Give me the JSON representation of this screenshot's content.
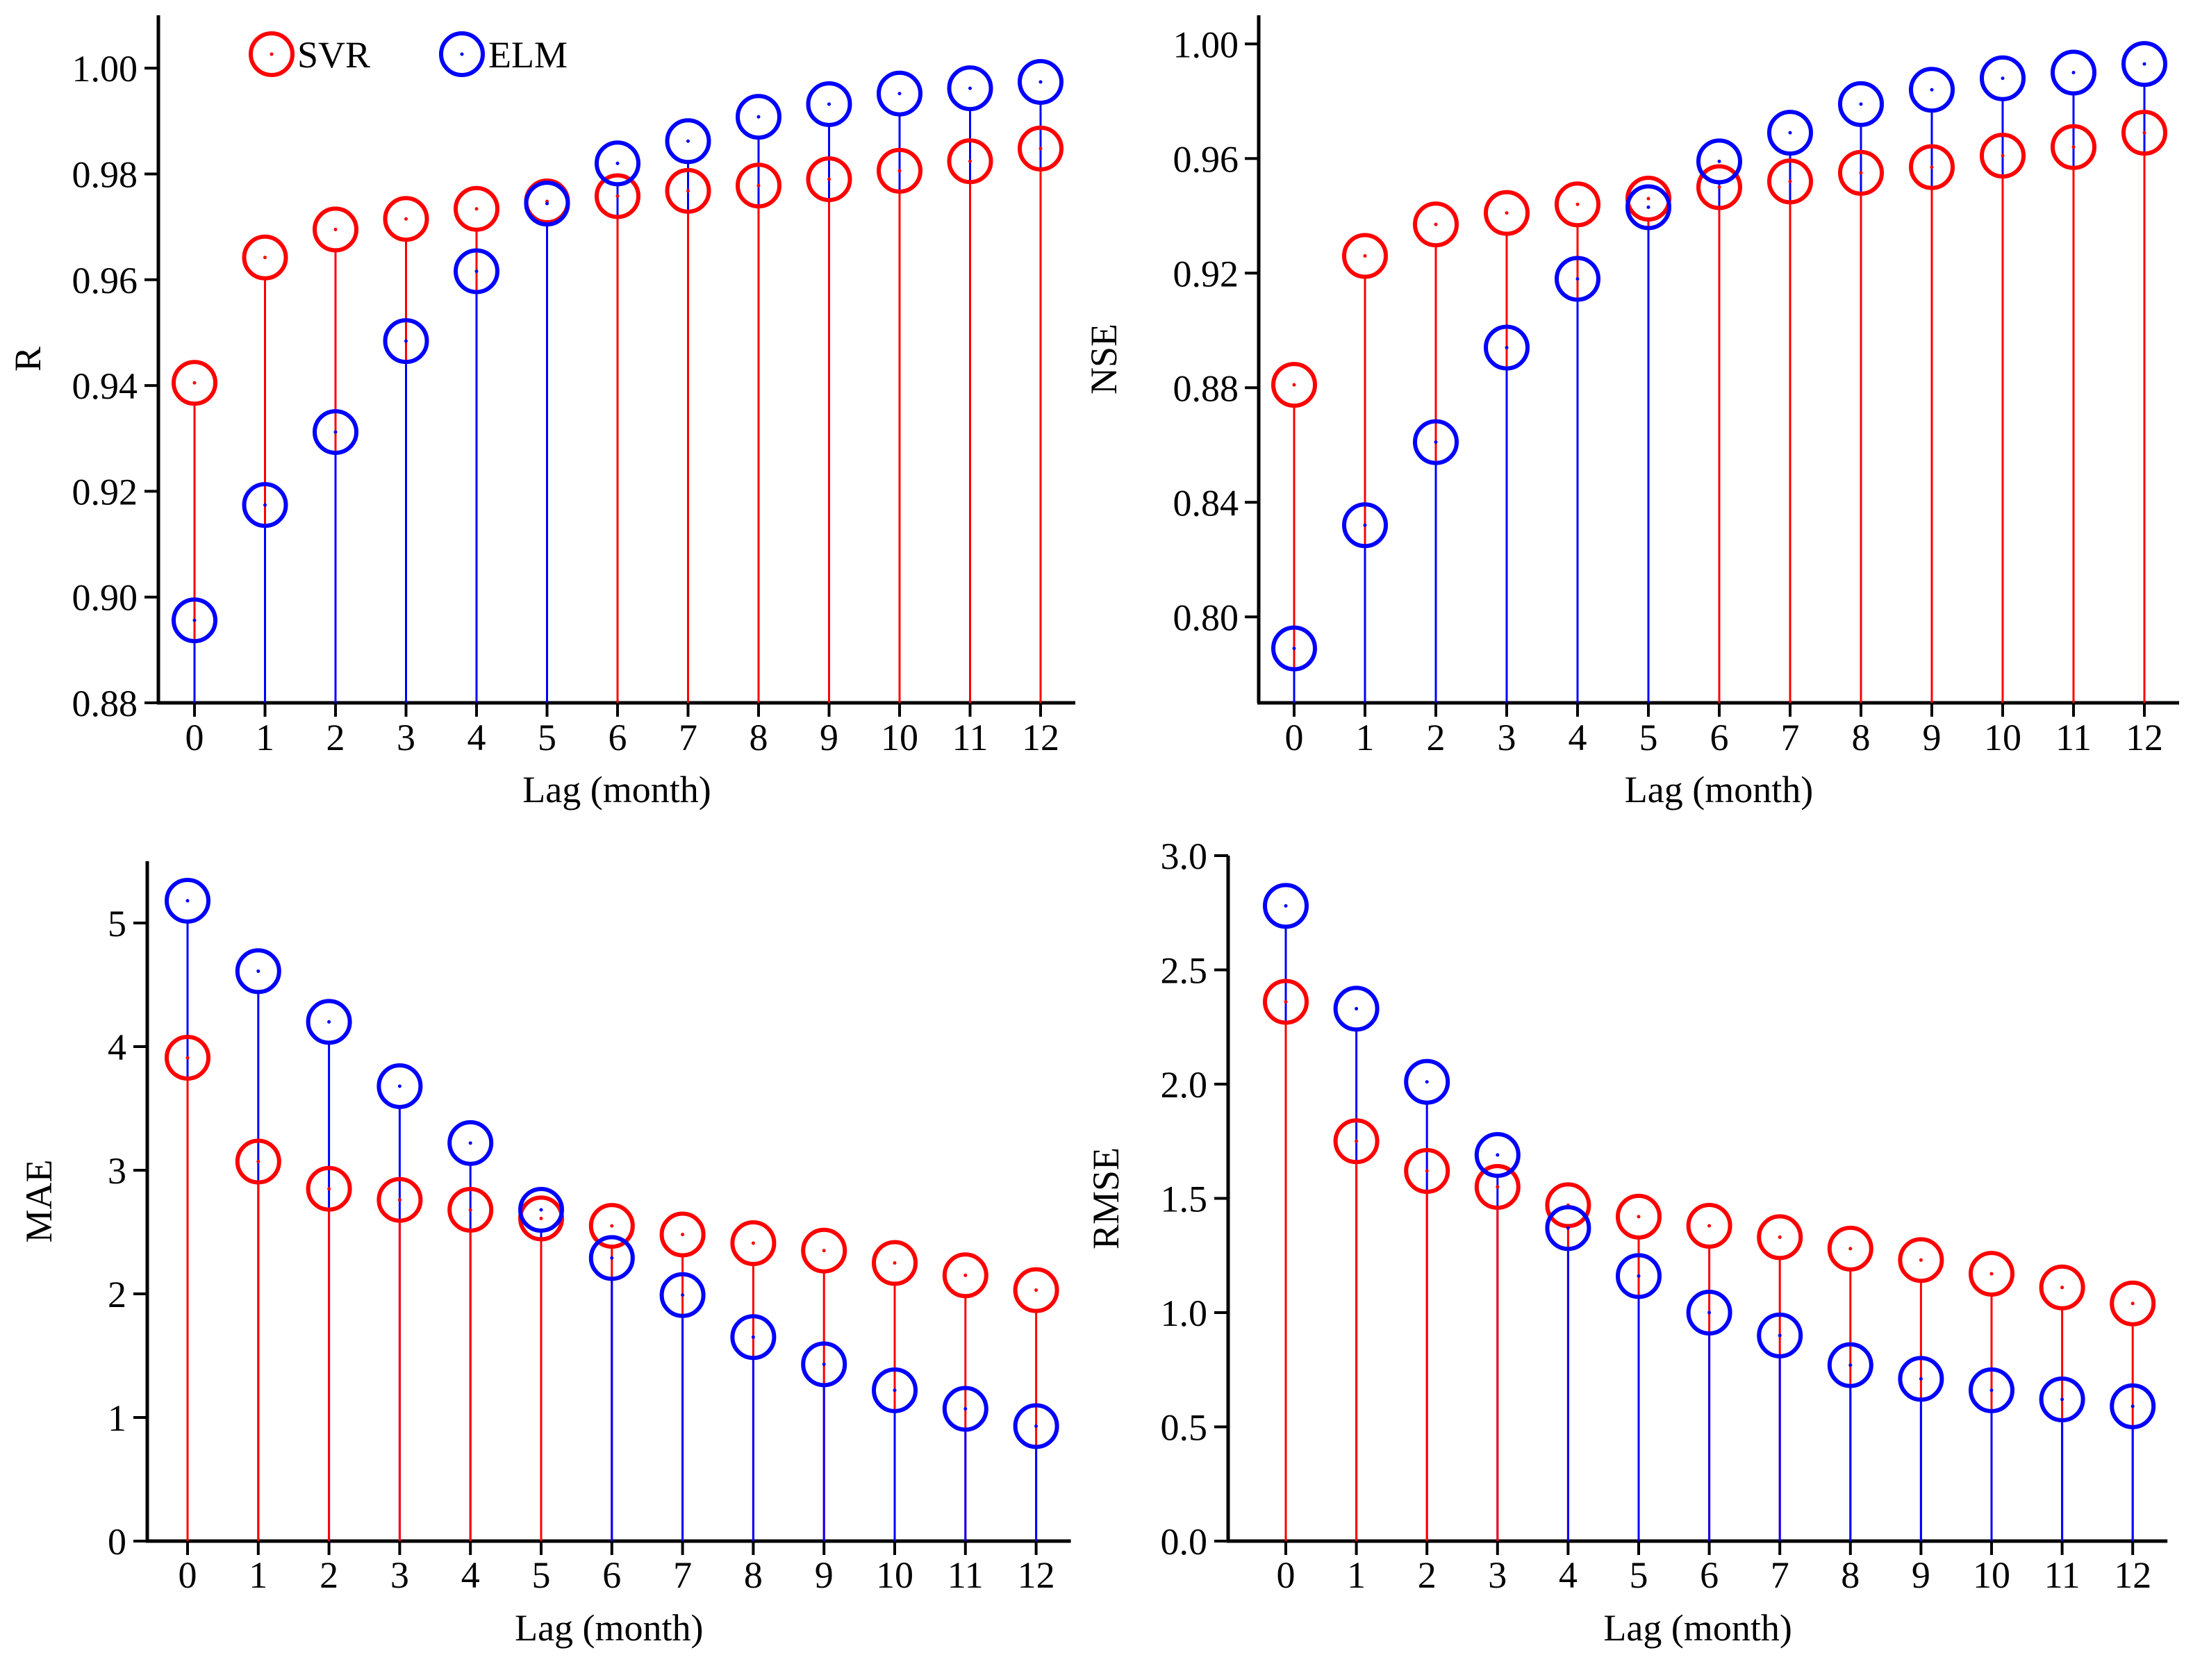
{
  "colors": {
    "svr": "#ff0000",
    "elm": "#0000ff",
    "axis": "#000000"
  },
  "legend": {
    "entries": [
      "SVR",
      "ELM"
    ]
  },
  "chart_data": [
    {
      "type": "scatter",
      "panel": "top-left",
      "title": "",
      "xlabel": "Lag (month)",
      "ylabel": "R",
      "categories": [
        "0",
        "1",
        "2",
        "3",
        "4",
        "5",
        "6",
        "7",
        "8",
        "9",
        "10",
        "11",
        "12"
      ],
      "ylim": [
        0.88,
        1.01
      ],
      "yticks": [
        0.88,
        0.9,
        0.92,
        0.94,
        0.96,
        0.98,
        1.0
      ],
      "ytick_labels": [
        "0.88",
        "0.90",
        "0.92",
        "0.94",
        "0.96",
        "0.98",
        "1.00"
      ],
      "series": [
        {
          "name": "SVR",
          "values": [
            0.9405,
            0.9642,
            0.9695,
            0.9715,
            0.9734,
            0.9748,
            0.9758,
            0.9768,
            0.9778,
            0.979,
            0.9806,
            0.9824,
            0.9848
          ]
        },
        {
          "name": "ELM",
          "values": [
            0.8956,
            0.9174,
            0.9312,
            0.9484,
            0.9616,
            0.9744,
            0.982,
            0.9862,
            0.9908,
            0.9932,
            0.9952,
            0.9962,
            0.9974
          ]
        }
      ]
    },
    {
      "type": "scatter",
      "panel": "top-right",
      "title": "",
      "xlabel": "Lag (month)",
      "ylabel": "NSE",
      "categories": [
        "0",
        "1",
        "2",
        "3",
        "4",
        "5",
        "6",
        "7",
        "8",
        "9",
        "10",
        "11",
        "12"
      ],
      "ylim": [
        0.77,
        1.01
      ],
      "yticks": [
        0.8,
        0.84,
        0.88,
        0.92,
        0.96,
        1.0
      ],
      "ytick_labels": [
        "0.80",
        "0.84",
        "0.88",
        "0.92",
        "0.96",
        "1.00"
      ],
      "series": [
        {
          "name": "SVR",
          "values": [
            0.881,
            0.926,
            0.937,
            0.941,
            0.944,
            0.946,
            0.95,
            0.952,
            0.955,
            0.957,
            0.961,
            0.964,
            0.969
          ]
        },
        {
          "name": "ELM",
          "values": [
            0.789,
            0.832,
            0.861,
            0.894,
            0.918,
            0.943,
            0.959,
            0.969,
            0.979,
            0.984,
            0.988,
            0.99,
            0.993
          ]
        }
      ]
    },
    {
      "type": "scatter",
      "panel": "bottom-left",
      "title": "",
      "xlabel": "Lag (month)",
      "ylabel": "MAE",
      "categories": [
        "0",
        "1",
        "2",
        "3",
        "4",
        "5",
        "6",
        "7",
        "8",
        "9",
        "10",
        "11",
        "12"
      ],
      "ylim": [
        0,
        5.5
      ],
      "yticks": [
        0,
        1,
        2,
        3,
        4,
        5
      ],
      "ytick_labels": [
        "0",
        "1",
        "2",
        "3",
        "4",
        "5"
      ],
      "series": [
        {
          "name": "SVR",
          "values": [
            3.91,
            3.07,
            2.85,
            2.76,
            2.68,
            2.61,
            2.55,
            2.48,
            2.41,
            2.35,
            2.25,
            2.15,
            2.03
          ]
        },
        {
          "name": "ELM",
          "values": [
            5.18,
            4.61,
            4.2,
            3.68,
            3.22,
            2.68,
            2.29,
            1.99,
            1.65,
            1.43,
            1.22,
            1.07,
            0.93
          ]
        }
      ]
    },
    {
      "type": "scatter",
      "panel": "bottom-right",
      "title": "",
      "xlabel": "Lag (month)",
      "ylabel": "RMSE",
      "categories": [
        "0",
        "1",
        "2",
        "3",
        "4",
        "5",
        "6",
        "7",
        "8",
        "9",
        "10",
        "11",
        "12"
      ],
      "ylim": [
        0,
        3.0
      ],
      "yticks": [
        0.0,
        0.5,
        1.0,
        1.5,
        2.0,
        2.5,
        3.0
      ],
      "ytick_labels": [
        "0.0",
        "0.5",
        "1.0",
        "1.5",
        "2.0",
        "2.5",
        "3.0"
      ],
      "series": [
        {
          "name": "SVR",
          "values": [
            2.36,
            1.75,
            1.62,
            1.55,
            1.47,
            1.42,
            1.38,
            1.33,
            1.28,
            1.23,
            1.17,
            1.11,
            1.04
          ]
        },
        {
          "name": "ELM",
          "values": [
            2.78,
            2.33,
            2.01,
            1.69,
            1.37,
            1.16,
            1.0,
            0.9,
            0.77,
            0.71,
            0.66,
            0.62,
            0.59
          ]
        }
      ]
    }
  ]
}
